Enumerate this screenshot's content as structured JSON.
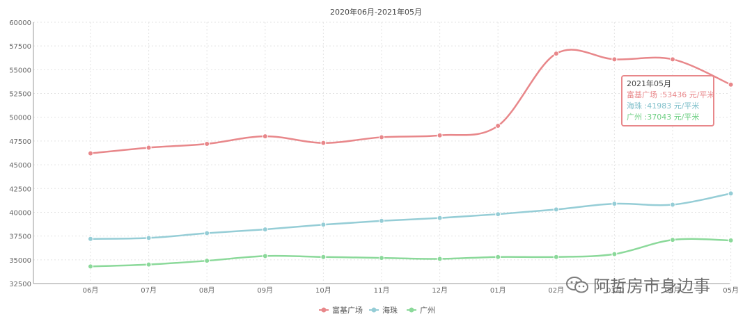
{
  "chart_data": {
    "type": "line",
    "title": "2020年06月-2021年05月",
    "categories": [
      "06月",
      "07月",
      "08月",
      "09月",
      "10月",
      "11月",
      "12月",
      "01月",
      "02月",
      "03月",
      "04月",
      "05月"
    ],
    "ylim": [
      32500,
      60000
    ],
    "yticks": [
      32500,
      35000,
      37500,
      40000,
      42500,
      45000,
      47500,
      50000,
      52500,
      55000,
      57500,
      60000
    ],
    "ytick_labels": [
      "32500",
      "35000",
      "37500",
      "40000",
      "42500",
      "45000",
      "47500",
      "50000",
      "52500",
      "55000",
      "57500",
      "60000"
    ],
    "grid": true,
    "legend_position": "bottom",
    "series": [
      {
        "name": "富基广场",
        "color": "#e8878a",
        "values": [
          46200,
          46800,
          47200,
          48000,
          47300,
          47900,
          48100,
          49100,
          56700,
          56100,
          56100,
          53436
        ]
      },
      {
        "name": "海珠",
        "color": "#95cdd6",
        "values": [
          37200,
          37300,
          37800,
          38200,
          38700,
          39100,
          39400,
          39800,
          40300,
          40900,
          40800,
          41983
        ]
      },
      {
        "name": "广州",
        "color": "#8bd99a",
        "values": [
          34300,
          34500,
          34900,
          35400,
          35300,
          35200,
          35100,
          35300,
          35300,
          35600,
          37100,
          37043
        ]
      }
    ]
  },
  "tooltip": {
    "title": "2021年05月",
    "rows": [
      {
        "color": "#e8878a",
        "text": "富基广场 :53436 元/平米"
      },
      {
        "color": "#95cdd6",
        "text": "海珠 :41983 元/平米"
      },
      {
        "color": "#8bd99a",
        "text": "广州 :37043 元/平米"
      }
    ]
  },
  "watermark": {
    "text": "阿哲房市身边事",
    "icon": "wechat-icon"
  }
}
